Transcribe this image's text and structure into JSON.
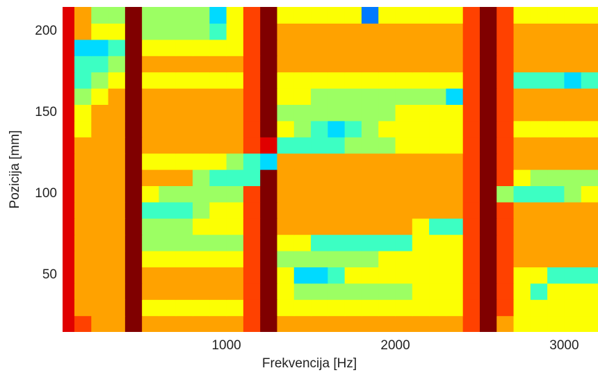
{
  "chart_data": {
    "type": "heatmap",
    "x_label": "Frekvencija [Hz]",
    "y_label": "Pozicija [mm]",
    "x": [
      50,
      150,
      250,
      350,
      450,
      550,
      650,
      750,
      850,
      950,
      1050,
      1150,
      1250,
      1350,
      1450,
      1550,
      1650,
      1750,
      1850,
      1950,
      2050,
      2150,
      2250,
      2350,
      2450,
      2550,
      2650,
      2750,
      2850,
      2950,
      3050,
      3150
    ],
    "y": [
      20,
      30,
      40,
      50,
      60,
      70,
      80,
      90,
      100,
      110,
      120,
      130,
      140,
      150,
      160,
      170,
      180,
      190,
      200,
      210
    ],
    "z": [
      [
        8,
        7,
        6,
        6,
        9,
        6,
        6,
        6,
        6,
        6,
        6,
        7,
        9,
        6,
        6,
        6,
        6,
        6,
        6,
        6,
        6,
        6,
        6,
        6,
        7,
        9,
        6,
        5,
        5,
        5,
        5,
        5
      ],
      [
        8,
        6,
        6,
        6,
        9,
        5,
        5,
        5,
        5,
        5,
        5,
        7,
        9,
        5,
        5,
        5,
        5,
        5,
        5,
        5,
        5,
        5,
        5,
        5,
        7,
        9,
        7,
        5,
        5,
        5,
        5,
        5
      ],
      [
        8,
        6,
        6,
        6,
        9,
        6,
        6,
        6,
        6,
        6,
        6,
        7,
        9,
        5,
        4,
        4,
        4,
        4,
        4,
        4,
        4,
        5,
        5,
        5,
        7,
        9,
        7,
        5,
        3,
        5,
        5,
        5
      ],
      [
        8,
        6,
        6,
        6,
        9,
        6,
        6,
        6,
        6,
        6,
        6,
        7,
        9,
        5,
        2,
        2,
        3,
        5,
        5,
        5,
        5,
        5,
        5,
        5,
        7,
        9,
        7,
        5,
        5,
        3,
        3,
        3
      ],
      [
        8,
        6,
        6,
        6,
        9,
        5,
        5,
        5,
        5,
        5,
        5,
        7,
        9,
        4,
        4,
        4,
        4,
        4,
        4,
        5,
        5,
        5,
        5,
        5,
        7,
        9,
        7,
        6,
        6,
        6,
        6,
        6
      ],
      [
        8,
        6,
        6,
        6,
        9,
        4,
        4,
        4,
        4,
        4,
        4,
        7,
        9,
        5,
        5,
        3,
        3,
        3,
        3,
        3,
        3,
        5,
        5,
        5,
        7,
        9,
        7,
        6,
        6,
        6,
        6,
        6
      ],
      [
        8,
        6,
        6,
        6,
        9,
        4,
        4,
        4,
        5,
        5,
        5,
        7,
        9,
        6,
        6,
        6,
        6,
        6,
        6,
        6,
        6,
        5,
        3,
        3,
        7,
        9,
        7,
        6,
        6,
        6,
        6,
        6
      ],
      [
        8,
        6,
        6,
        6,
        9,
        3,
        3,
        3,
        4,
        5,
        5,
        7,
        9,
        6,
        6,
        6,
        6,
        6,
        6,
        6,
        6,
        6,
        6,
        6,
        7,
        9,
        7,
        6,
        6,
        6,
        6,
        6
      ],
      [
        8,
        6,
        6,
        6,
        9,
        5,
        4,
        4,
        4,
        4,
        4,
        7,
        9,
        6,
        6,
        6,
        6,
        6,
        6,
        6,
        6,
        6,
        6,
        6,
        7,
        9,
        4,
        3,
        3,
        3,
        4,
        5
      ],
      [
        8,
        6,
        6,
        6,
        9,
        6,
        6,
        6,
        4,
        3,
        3,
        3,
        9,
        6,
        6,
        6,
        6,
        6,
        6,
        6,
        6,
        6,
        6,
        6,
        7,
        9,
        7,
        5,
        4,
        4,
        4,
        4
      ],
      [
        8,
        6,
        6,
        6,
        9,
        5,
        5,
        5,
        5,
        5,
        4,
        3,
        2,
        6,
        6,
        6,
        6,
        6,
        6,
        6,
        6,
        6,
        6,
        6,
        7,
        9,
        7,
        6,
        6,
        6,
        6,
        6
      ],
      [
        8,
        6,
        6,
        6,
        9,
        6,
        6,
        6,
        6,
        6,
        6,
        7,
        8,
        3,
        3,
        3,
        3,
        4,
        4,
        4,
        5,
        5,
        5,
        5,
        7,
        9,
        7,
        6,
        6,
        6,
        6,
        6
      ],
      [
        8,
        5,
        6,
        6,
        9,
        6,
        6,
        6,
        6,
        6,
        6,
        7,
        9,
        5,
        4,
        3,
        2,
        3,
        4,
        5,
        5,
        5,
        5,
        5,
        7,
        9,
        7,
        5,
        5,
        5,
        5,
        5
      ],
      [
        8,
        5,
        6,
        6,
        9,
        6,
        6,
        6,
        6,
        6,
        6,
        7,
        9,
        4,
        4,
        4,
        4,
        4,
        4,
        4,
        5,
        5,
        5,
        5,
        7,
        9,
        7,
        6,
        6,
        6,
        6,
        6
      ],
      [
        8,
        4,
        5,
        6,
        9,
        6,
        6,
        6,
        6,
        6,
        6,
        7,
        9,
        5,
        5,
        4,
        4,
        4,
        4,
        4,
        4,
        4,
        4,
        2,
        7,
        9,
        7,
        6,
        6,
        6,
        6,
        6
      ],
      [
        8,
        3,
        4,
        5,
        9,
        5,
        5,
        5,
        5,
        5,
        5,
        7,
        9,
        5,
        5,
        5,
        5,
        5,
        5,
        5,
        5,
        5,
        5,
        5,
        7,
        9,
        7,
        3,
        3,
        3,
        2,
        3
      ],
      [
        8,
        3,
        3,
        4,
        9,
        6,
        6,
        6,
        6,
        6,
        6,
        7,
        9,
        6,
        6,
        6,
        6,
        6,
        6,
        6,
        6,
        6,
        6,
        6,
        7,
        9,
        7,
        6,
        6,
        6,
        6,
        6
      ],
      [
        8,
        2,
        2,
        3,
        9,
        5,
        5,
        5,
        5,
        5,
        5,
        7,
        9,
        6,
        6,
        6,
        6,
        6,
        6,
        6,
        6,
        6,
        6,
        6,
        7,
        9,
        7,
        6,
        6,
        6,
        6,
        6
      ],
      [
        8,
        6,
        5,
        5,
        9,
        4,
        4,
        4,
        4,
        3,
        5,
        7,
        9,
        6,
        6,
        6,
        6,
        6,
        6,
        6,
        6,
        6,
        6,
        6,
        7,
        9,
        7,
        6,
        6,
        6,
        6,
        6
      ],
      [
        8,
        6,
        4,
        4,
        9,
        4,
        4,
        4,
        4,
        2,
        5,
        7,
        9,
        5,
        5,
        5,
        5,
        5,
        1,
        5,
        5,
        5,
        5,
        5,
        7,
        9,
        7,
        5,
        5,
        5,
        5,
        5
      ]
    ],
    "xlim": [
      30,
      3200
    ],
    "ylim": [
      15,
      215
    ],
    "xticks": [
      1000,
      2000,
      3000
    ],
    "yticks": [
      50,
      100,
      150,
      200
    ]
  }
}
